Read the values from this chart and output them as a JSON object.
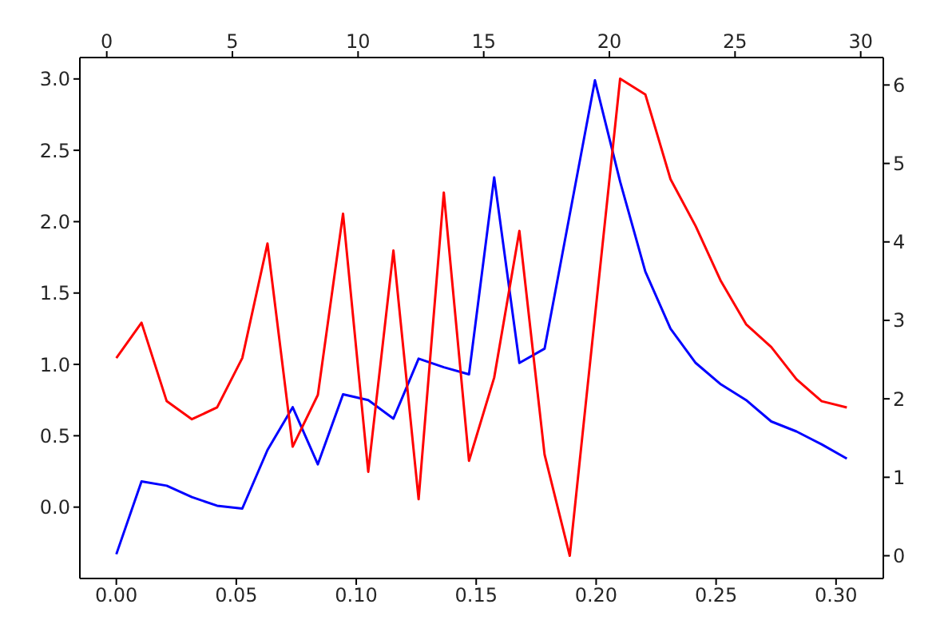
{
  "chart_data": {
    "type": "line",
    "x": [
      0,
      0.0105,
      0.021,
      0.0315,
      0.042,
      0.0525,
      0.063,
      0.0735,
      0.084,
      0.0945,
      0.105,
      0.1155,
      0.126,
      0.1365,
      0.147,
      0.1575,
      0.168,
      0.1785,
      0.189,
      0.1995,
      0.21,
      0.2205,
      0.231,
      0.2415,
      0.252,
      0.2625,
      0.273,
      0.2835,
      0.294,
      0.3045
    ],
    "series": [
      {
        "color": "#0000ff",
        "values": [
          -0.33,
          0.18,
          0.15,
          0.07,
          0.01,
          -0.01,
          0.4,
          0.7,
          0.3,
          0.79,
          0.75,
          0.62,
          1.04,
          0.98,
          0.93,
          2.31,
          1.01,
          1.11,
          2.05,
          2.99,
          2.28,
          1.65,
          1.25,
          1.01,
          0.86,
          0.75,
          0.6,
          0.53,
          0.44,
          0.34
        ]
      },
      {
        "color": "#ff0000",
        "axis": "y2",
        "values": [
          2.52,
          2.97,
          1.97,
          1.74,
          1.89,
          2.52,
          3.98,
          1.39,
          2.05,
          4.36,
          1.07,
          3.89,
          0.72,
          4.63,
          1.21,
          2.27,
          4.14,
          1.29,
          0.0,
          3.05,
          6.08,
          5.88,
          4.8,
          4.2,
          3.5,
          2.95,
          2.66,
          2.25,
          1.97,
          1.89
        ]
      }
    ],
    "xlim": [
      -0.0152,
      0.3197
    ],
    "xticks": [
      {
        "value": 0,
        "label": "0.00"
      },
      0.05,
      {
        "value": 0.1,
        "label": "0.10"
      },
      0.15,
      {
        "value": 0.2,
        "label": "0.20"
      },
      0.25,
      {
        "value": 0.3,
        "label": "0.30"
      }
    ],
    "x2lim": [
      -1.07,
      30.9
    ],
    "x2ticks": [
      0,
      5,
      10,
      15,
      20,
      25,
      30
    ],
    "ylim": [
      -0.5,
      3.15
    ],
    "yticks": [
      {
        "value": 0,
        "label": "0.0"
      },
      0.5,
      {
        "value": 1,
        "label": "1.0"
      },
      1.5,
      {
        "value": 2,
        "label": "2.0"
      },
      2.5,
      {
        "value": 3,
        "label": "3.0"
      }
    ],
    "y2lim": [
      -0.29,
      6.35
    ],
    "y2ticks": [
      0,
      1,
      2,
      3,
      4,
      5,
      6
    ]
  }
}
